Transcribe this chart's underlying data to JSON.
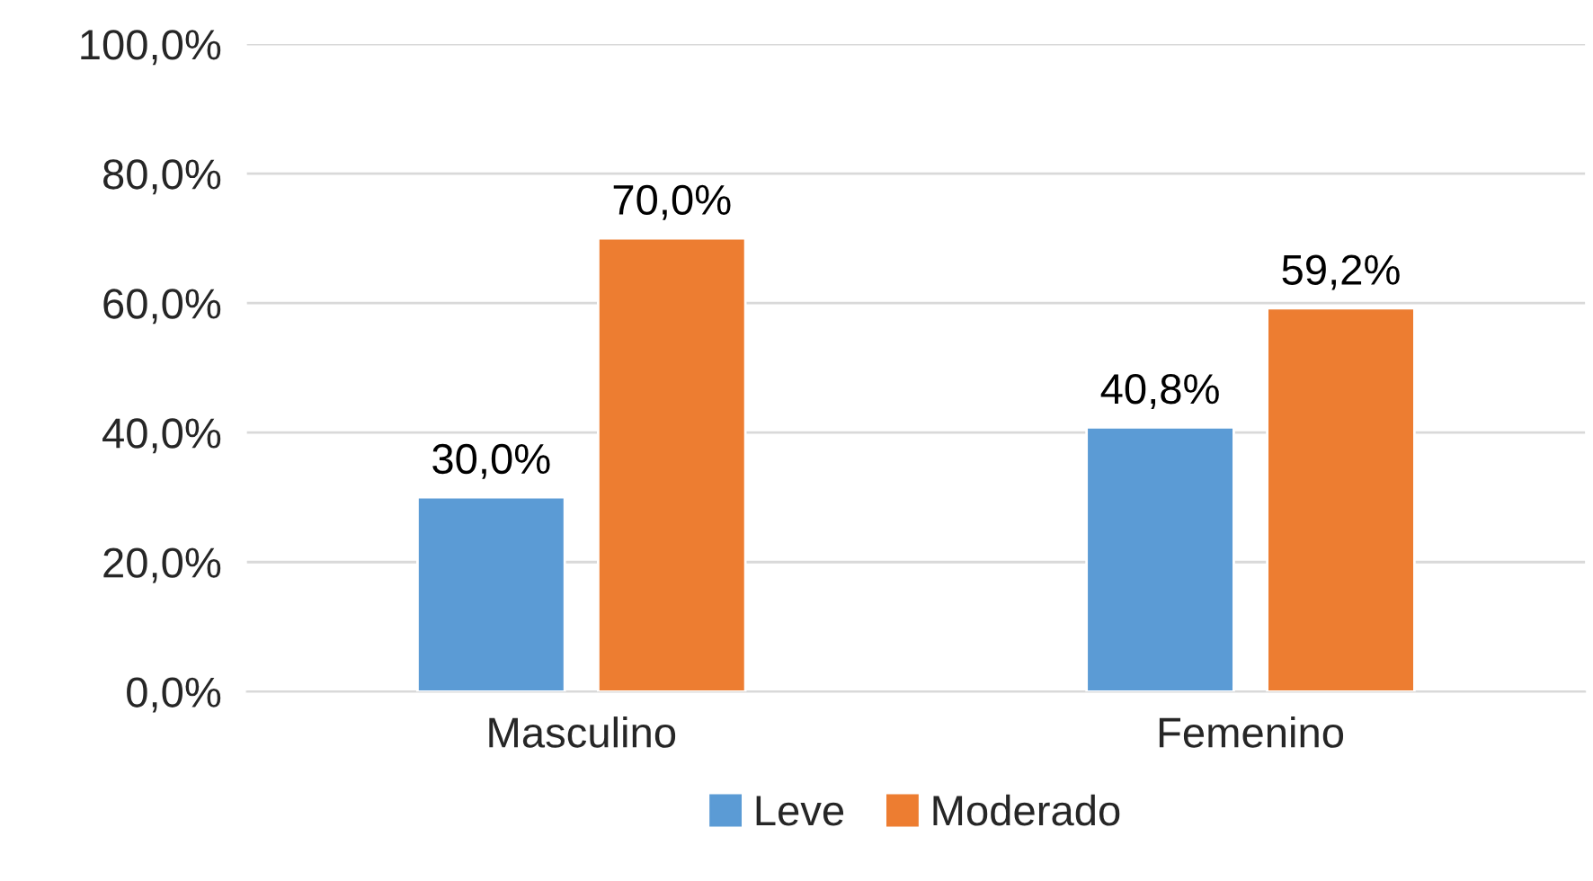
{
  "chart_data": {
    "type": "bar",
    "categories": [
      "Masculino",
      "Femenino"
    ],
    "series": [
      {
        "name": "Leve",
        "color": "#5b9bd5",
        "values": [
          30.0,
          40.8
        ],
        "value_labels": [
          "30,0%",
          "40,8%"
        ]
      },
      {
        "name": "Moderado",
        "color": "#ed7d31",
        "values": [
          70.0,
          59.2
        ],
        "value_labels": [
          "70,0%",
          "59,2%"
        ]
      }
    ],
    "ylim": [
      0,
      100
    ],
    "yticks": [
      {
        "value": 0,
        "label": "0,0%"
      },
      {
        "value": 20,
        "label": "20,0%"
      },
      {
        "value": 40,
        "label": "40,0%"
      },
      {
        "value": 60,
        "label": "60,0%"
      },
      {
        "value": 80,
        "label": "80,0%"
      },
      {
        "value": 100,
        "label": "100,0%"
      }
    ],
    "grid": "y",
    "legend": "bottom"
  }
}
